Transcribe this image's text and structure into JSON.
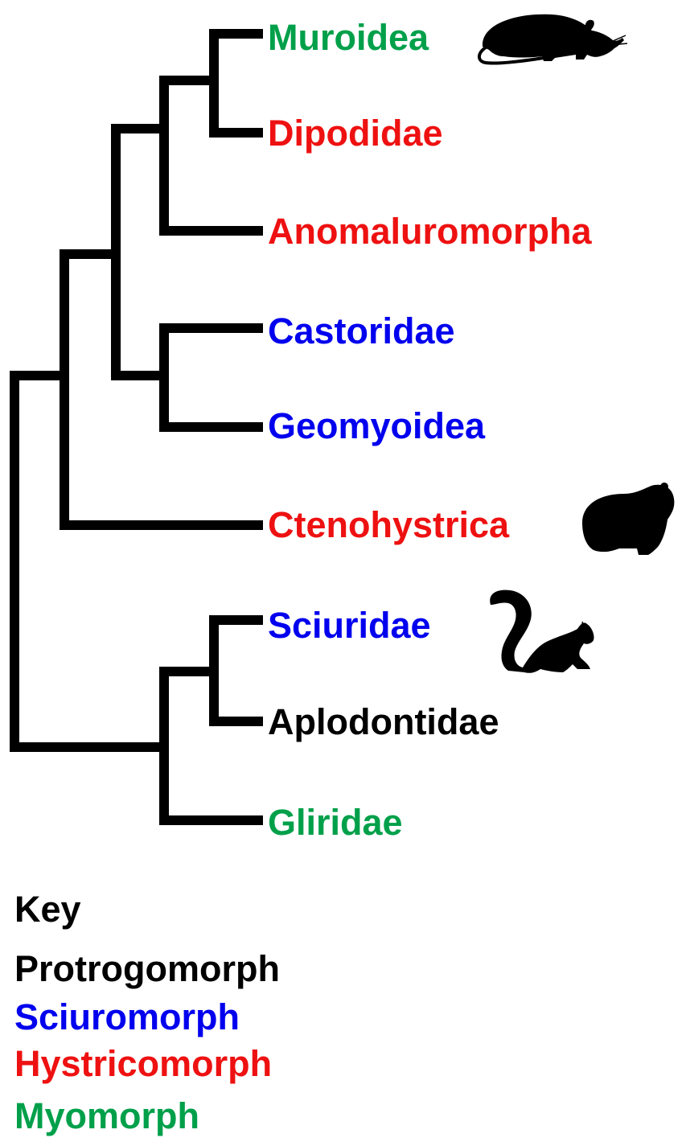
{
  "colors": {
    "protrogomorph": "#000000",
    "sciuromorph": "#0000ee",
    "hystricomorph": "#ee1111",
    "myomorph": "#00a04a",
    "branch": "#000000"
  },
  "taxa": [
    {
      "name": "Muroidea",
      "group": "myomorph",
      "color": "#00a04a"
    },
    {
      "name": "Dipodidae",
      "group": "hystricomorph",
      "color": "#ee1111"
    },
    {
      "name": "Anomaluromorpha",
      "group": "hystricomorph",
      "color": "#ee1111"
    },
    {
      "name": "Castoridae",
      "group": "sciuromorph",
      "color": "#0000ee"
    },
    {
      "name": "Geomyoidea",
      "group": "sciuromorph",
      "color": "#0000ee"
    },
    {
      "name": "Ctenohystrica",
      "group": "hystricomorph",
      "color": "#ee1111"
    },
    {
      "name": "Sciuridae",
      "group": "sciuromorph",
      "color": "#0000ee"
    },
    {
      "name": "Aplodontidae",
      "group": "protrogomorph",
      "color": "#000000"
    },
    {
      "name": "Gliridae",
      "group": "myomorph",
      "color": "#00a04a"
    }
  ],
  "silhouettes": [
    "rat-silhouette-icon",
    "guinea-pig-silhouette-icon",
    "squirrel-silhouette-icon"
  ],
  "key": {
    "title": "Key",
    "items": [
      {
        "label": "Protrogomorph",
        "color": "#000000"
      },
      {
        "label": "Sciuromorph",
        "color": "#0000ee"
      },
      {
        "label": "Hystricomorph",
        "color": "#ee1111"
      },
      {
        "label": "Myomorph",
        "color": "#00a04a"
      }
    ]
  }
}
